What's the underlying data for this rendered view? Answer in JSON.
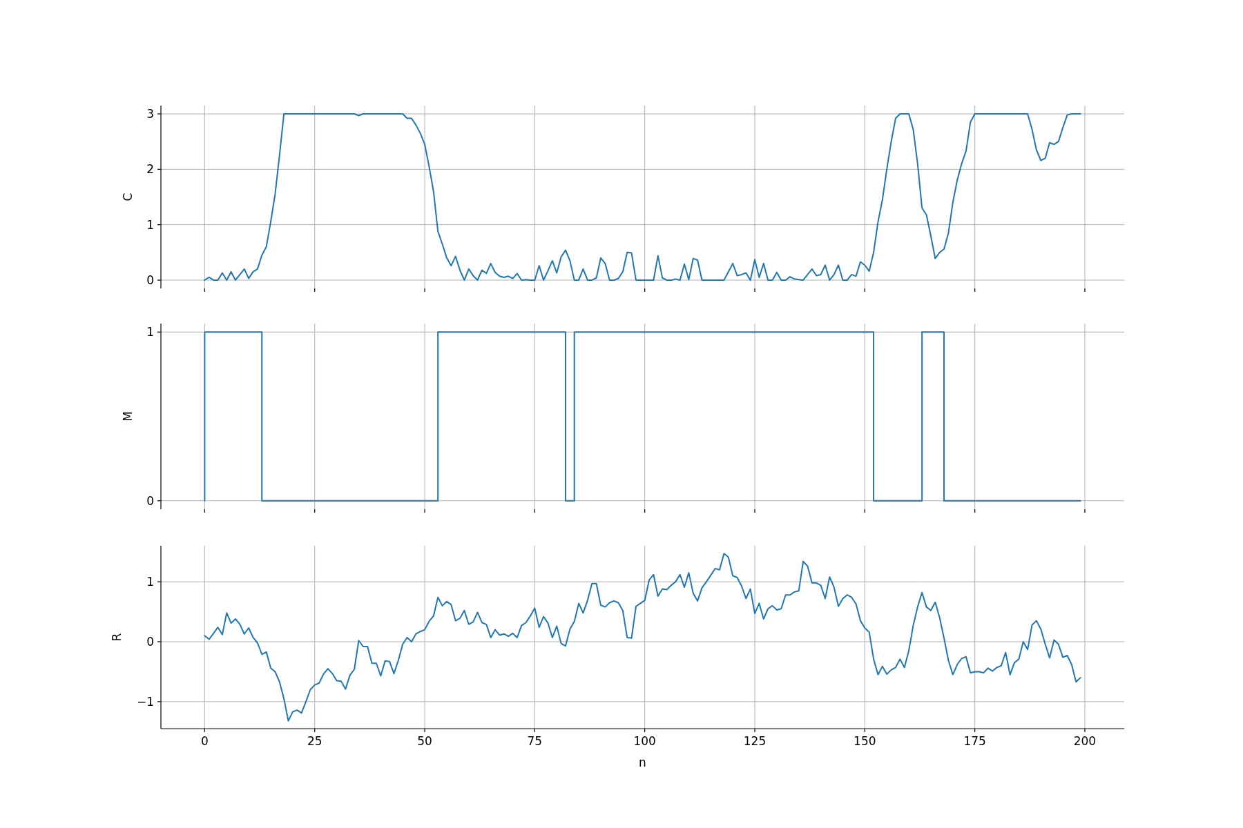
{
  "chart_data": [
    {
      "type": "line",
      "ylabel": "C",
      "color": "#1f77b4",
      "grid": true,
      "tick_labels": "y",
      "x": [
        0,
        1,
        2,
        3,
        4,
        5,
        6,
        7,
        8,
        9,
        10,
        11,
        12,
        13,
        14,
        15,
        16,
        17,
        18,
        19,
        20,
        21,
        22,
        23,
        24,
        25,
        26,
        27,
        28,
        29,
        30,
        31,
        32,
        33,
        34,
        35,
        36,
        37,
        38,
        39,
        40,
        41,
        42,
        43,
        44,
        45,
        46,
        47,
        48,
        49,
        50,
        51,
        52,
        53,
        54,
        55,
        56,
        57,
        58,
        59,
        60,
        61,
        62,
        63,
        64,
        65,
        66,
        67,
        68,
        69,
        70,
        71,
        72,
        73,
        74,
        75,
        76,
        77,
        78,
        79,
        80,
        81,
        82,
        83,
        84,
        85,
        86,
        87,
        88,
        89,
        90,
        91,
        92,
        93,
        94,
        95,
        96,
        97,
        98,
        99,
        100,
        101,
        102,
        103,
        104,
        105,
        106,
        107,
        108,
        109,
        110,
        111,
        112,
        113,
        114,
        115,
        116,
        117,
        118,
        119,
        120,
        121,
        122,
        123,
        124,
        125,
        126,
        127,
        128,
        129,
        130,
        131,
        132,
        133,
        134,
        135,
        136,
        137,
        138,
        139,
        140,
        141,
        142,
        143,
        144,
        145,
        146,
        147,
        148,
        149,
        150,
        151,
        152,
        153,
        154,
        155,
        156,
        157,
        158,
        159,
        160,
        161,
        162,
        163,
        164,
        165,
        166,
        167,
        168,
        169,
        170,
        171,
        172,
        173,
        174,
        175,
        176,
        177,
        178,
        179,
        180,
        181,
        182,
        183,
        184,
        185,
        186,
        187,
        188,
        189,
        190,
        191,
        192,
        193,
        194,
        195,
        196,
        197,
        198,
        199
      ],
      "values": [
        0,
        0.05,
        0,
        0,
        0.13,
        0,
        0.15,
        0,
        0.1,
        0.2,
        0.03,
        0.15,
        0.2,
        0.45,
        0.6,
        1.05,
        1.55,
        2.25,
        3,
        3,
        3,
        3,
        3,
        3,
        3,
        3,
        3,
        3,
        3,
        3,
        3,
        3,
        3,
        3,
        3,
        2.97,
        3,
        3,
        3,
        3,
        3,
        3,
        3,
        3,
        3,
        3,
        2.92,
        2.92,
        2.8,
        2.65,
        2.45,
        2.05,
        1.6,
        0.88,
        0.65,
        0.4,
        0.26,
        0.43,
        0.18,
        0,
        0.2,
        0.08,
        0,
        0.18,
        0.12,
        0.3,
        0.14,
        0.07,
        0.05,
        0.07,
        0.03,
        0.12,
        0,
        0.01,
        0,
        0,
        0.26,
        0,
        0.17,
        0.35,
        0.13,
        0.42,
        0.54,
        0.35,
        0,
        0,
        0.2,
        0,
        0,
        0.04,
        0.4,
        0.3,
        0,
        0,
        0.03,
        0.15,
        0.5,
        0.49,
        0,
        0,
        0,
        0,
        0,
        0.44,
        0.04,
        0,
        0,
        0.02,
        0,
        0.29,
        0.01,
        0.39,
        0.36,
        0,
        0,
        0,
        0,
        0,
        0,
        0.15,
        0.3,
        0.08,
        0.1,
        0.13,
        0,
        0.37,
        0.05,
        0.3,
        0,
        0,
        0.14,
        0,
        0,
        0.06,
        0.02,
        0.01,
        0,
        0.1,
        0.2,
        0.08,
        0.1,
        0.27,
        0,
        0.1,
        0.27,
        0,
        0,
        0.1,
        0.07,
        0.33,
        0.27,
        0.16,
        0.5,
        1.05,
        1.45,
        2,
        2.5,
        2.92,
        3,
        3,
        3,
        2.72,
        2.1,
        1.3,
        1.18,
        0.8,
        0.39,
        0.5,
        0.56,
        0.85,
        1.4,
        1.8,
        2.1,
        2.33,
        2.85,
        3,
        3,
        3,
        3,
        3,
        3,
        3,
        3,
        3,
        3,
        3,
        3,
        3,
        2.72,
        2.35,
        2.16,
        2.2,
        2.48,
        2.45,
        2.5,
        2.75,
        2.98,
        3,
        3,
        3
      ],
      "xlim": [
        -9.95,
        208.95
      ],
      "xticks": [
        0,
        25,
        50,
        75,
        100,
        125,
        150,
        175,
        200
      ],
      "ylim": [
        -0.15,
        3.15
      ],
      "yticks": [
        0,
        1,
        2,
        3
      ]
    },
    {
      "type": "step",
      "ylabel": "M",
      "color": "#1f77b4",
      "grid": true,
      "tick_labels": "y",
      "x": [
        0,
        1,
        2,
        3,
        4,
        5,
        6,
        7,
        8,
        9,
        10,
        11,
        12,
        13,
        14,
        15,
        16,
        17,
        18,
        19,
        20,
        21,
        22,
        23,
        24,
        25,
        26,
        27,
        28,
        29,
        30,
        31,
        32,
        33,
        34,
        35,
        36,
        37,
        38,
        39,
        40,
        41,
        42,
        43,
        44,
        45,
        46,
        47,
        48,
        49,
        50,
        51,
        52,
        53,
        54,
        55,
        56,
        57,
        58,
        59,
        60,
        61,
        62,
        63,
        64,
        65,
        66,
        67,
        68,
        69,
        70,
        71,
        72,
        73,
        74,
        75,
        76,
        77,
        78,
        79,
        80,
        81,
        82,
        83,
        84,
        85,
        86,
        87,
        88,
        89,
        90,
        91,
        92,
        93,
        94,
        95,
        96,
        97,
        98,
        99,
        100,
        101,
        102,
        103,
        104,
        105,
        106,
        107,
        108,
        109,
        110,
        111,
        112,
        113,
        114,
        115,
        116,
        117,
        118,
        119,
        120,
        121,
        122,
        123,
        124,
        125,
        126,
        127,
        128,
        129,
        130,
        131,
        132,
        133,
        134,
        135,
        136,
        137,
        138,
        139,
        140,
        141,
        142,
        143,
        144,
        145,
        146,
        147,
        148,
        149,
        150,
        151,
        152,
        153,
        154,
        155,
        156,
        157,
        158,
        159,
        160,
        161,
        162,
        163,
        164,
        165,
        166,
        167,
        168,
        169,
        170,
        171,
        172,
        173,
        174,
        175,
        176,
        177,
        178,
        179,
        180,
        181,
        182,
        183,
        184,
        185,
        186,
        187,
        188,
        189,
        190,
        191,
        192,
        193,
        194,
        195,
        196,
        197,
        198,
        199
      ],
      "values": [
        0,
        1,
        1,
        1,
        1,
        1,
        1,
        1,
        1,
        1,
        1,
        1,
        1,
        1,
        0,
        0,
        0,
        0,
        0,
        0,
        0,
        0,
        0,
        0,
        0,
        0,
        0,
        0,
        0,
        0,
        0,
        0,
        0,
        0,
        0,
        0,
        0,
        0,
        0,
        0,
        0,
        0,
        0,
        0,
        0,
        0,
        0,
        0,
        0,
        0,
        0,
        0,
        0,
        0,
        1,
        1,
        1,
        1,
        1,
        1,
        1,
        1,
        1,
        1,
        1,
        1,
        1,
        1,
        1,
        1,
        1,
        1,
        1,
        1,
        1,
        1,
        1,
        1,
        1,
        1,
        1,
        1,
        1,
        0,
        0,
        1,
        1,
        1,
        1,
        1,
        1,
        1,
        1,
        1,
        1,
        1,
        1,
        1,
        1,
        1,
        1,
        1,
        1,
        1,
        1,
        1,
        1,
        1,
        1,
        1,
        1,
        1,
        1,
        1,
        1,
        1,
        1,
        1,
        1,
        1,
        1,
        1,
        1,
        1,
        1,
        1,
        1,
        1,
        1,
        1,
        1,
        1,
        1,
        1,
        1,
        1,
        1,
        1,
        1,
        1,
        1,
        1,
        1,
        1,
        1,
        1,
        1,
        1,
        1,
        1,
        1,
        1,
        1,
        0,
        0,
        0,
        0,
        0,
        0,
        0,
        0,
        0,
        0,
        0,
        1,
        1,
        1,
        1,
        1,
        0,
        0,
        0,
        0,
        0,
        0,
        0,
        0,
        0,
        0,
        0,
        0,
        0,
        0,
        0,
        0,
        0,
        0,
        0,
        0,
        0,
        0,
        0,
        0,
        0,
        0,
        0,
        0,
        0,
        0,
        0
      ],
      "xlim": [
        -9.95,
        208.95
      ],
      "xticks": [
        0,
        25,
        50,
        75,
        100,
        125,
        150,
        175,
        200
      ],
      "ylim": [
        -0.05,
        1.05
      ],
      "yticks": [
        0,
        1
      ]
    },
    {
      "type": "line",
      "ylabel": "R",
      "xlabel": "n",
      "color": "#1f77b4",
      "grid": true,
      "x": [
        0,
        1,
        2,
        3,
        4,
        5,
        6,
        7,
        8,
        9,
        10,
        11,
        12,
        13,
        14,
        15,
        16,
        17,
        18,
        19,
        20,
        21,
        22,
        23,
        24,
        25,
        26,
        27,
        28,
        29,
        30,
        31,
        32,
        33,
        34,
        35,
        36,
        37,
        38,
        39,
        40,
        41,
        42,
        43,
        44,
        45,
        46,
        47,
        48,
        49,
        50,
        51,
        52,
        53,
        54,
        55,
        56,
        57,
        58,
        59,
        60,
        61,
        62,
        63,
        64,
        65,
        66,
        67,
        68,
        69,
        70,
        71,
        72,
        73,
        74,
        75,
        76,
        77,
        78,
        79,
        80,
        81,
        82,
        83,
        84,
        85,
        86,
        87,
        88,
        89,
        90,
        91,
        92,
        93,
        94,
        95,
        96,
        97,
        98,
        99,
        100,
        101,
        102,
        103,
        104,
        105,
        106,
        107,
        108,
        109,
        110,
        111,
        112,
        113,
        114,
        115,
        116,
        117,
        118,
        119,
        120,
        121,
        122,
        123,
        124,
        125,
        126,
        127,
        128,
        129,
        130,
        131,
        132,
        133,
        134,
        135,
        136,
        137,
        138,
        139,
        140,
        141,
        142,
        143,
        144,
        145,
        146,
        147,
        148,
        149,
        150,
        151,
        152,
        153,
        154,
        155,
        156,
        157,
        158,
        159,
        160,
        161,
        162,
        163,
        164,
        165,
        166,
        167,
        168,
        169,
        170,
        171,
        172,
        173,
        174,
        175,
        176,
        177,
        178,
        179,
        180,
        181,
        182,
        183,
        184,
        185,
        186,
        187,
        188,
        189,
        190,
        191,
        192,
        193,
        194,
        195,
        196,
        197,
        198,
        199
      ],
      "values": [
        0.1,
        0.04,
        0.14,
        0.24,
        0.12,
        0.48,
        0.31,
        0.38,
        0.29,
        0.13,
        0.23,
        0.07,
        -0.02,
        -0.21,
        -0.17,
        -0.44,
        -0.5,
        -0.67,
        -0.95,
        -1.32,
        -1.17,
        -1.14,
        -1.19,
        -1,
        -0.8,
        -0.72,
        -0.69,
        -0.54,
        -0.45,
        -0.53,
        -0.65,
        -0.66,
        -0.79,
        -0.56,
        -0.46,
        0.02,
        -0.08,
        -0.08,
        -0.36,
        -0.36,
        -0.57,
        -0.32,
        -0.33,
        -0.53,
        -0.31,
        -0.04,
        0.07,
        0,
        0.13,
        0.17,
        0.2,
        0.34,
        0.43,
        0.74,
        0.6,
        0.67,
        0.62,
        0.35,
        0.39,
        0.52,
        0.29,
        0.33,
        0.49,
        0.32,
        0.29,
        0.07,
        0.2,
        0.11,
        0.13,
        0.09,
        0.14,
        0.07,
        0.27,
        0.32,
        0.43,
        0.56,
        0.24,
        0.42,
        0.31,
        0.07,
        0.26,
        -0.03,
        -0.07,
        0.21,
        0.34,
        0.64,
        0.48,
        0.69,
        0.97,
        0.97,
        0.61,
        0.58,
        0.65,
        0.68,
        0.65,
        0.52,
        0.07,
        0.06,
        0.59,
        0.64,
        0.69,
        1.03,
        1.12,
        0.76,
        0.88,
        0.87,
        0.94,
        1,
        1.12,
        0.91,
        1.15,
        0.81,
        0.68,
        0.9,
        1,
        1.11,
        1.22,
        1.2,
        1.47,
        1.41,
        1.1,
        1.07,
        0.93,
        0.72,
        0.88,
        0.47,
        0.64,
        0.38,
        0.55,
        0.6,
        0.53,
        0.55,
        0.78,
        0.78,
        0.83,
        0.85,
        1.34,
        1.26,
        0.98,
        0.98,
        0.94,
        0.72,
        1.08,
        0.91,
        0.59,
        0.72,
        0.78,
        0.74,
        0.63,
        0.35,
        0.23,
        0.16,
        -0.29,
        -0.55,
        -0.41,
        -0.54,
        -0.47,
        -0.43,
        -0.29,
        -0.43,
        -0.15,
        0.27,
        0.58,
        0.82,
        0.58,
        0.52,
        0.66,
        0.4,
        0.06,
        -0.31,
        -0.55,
        -0.38,
        -0.28,
        -0.25,
        -0.52,
        -0.5,
        -0.5,
        -0.52,
        -0.44,
        -0.49,
        -0.43,
        -0.4,
        -0.18,
        -0.55,
        -0.35,
        -0.29,
        0,
        -0.13,
        0.28,
        0.35,
        0.21,
        -0.04,
        -0.27,
        0.03,
        -0.04,
        -0.26,
        -0.23,
        -0.38,
        -0.67,
        -0.6
      ],
      "xlim": [
        -9.95,
        208.95
      ],
      "xticks": [
        0,
        25,
        50,
        75,
        100,
        125,
        150,
        175,
        200
      ],
      "ylim": [
        -1.45,
        1.6
      ],
      "yticks": [
        {
          "value": -1,
          "label": "−1"
        },
        0,
        1
      ]
    }
  ]
}
